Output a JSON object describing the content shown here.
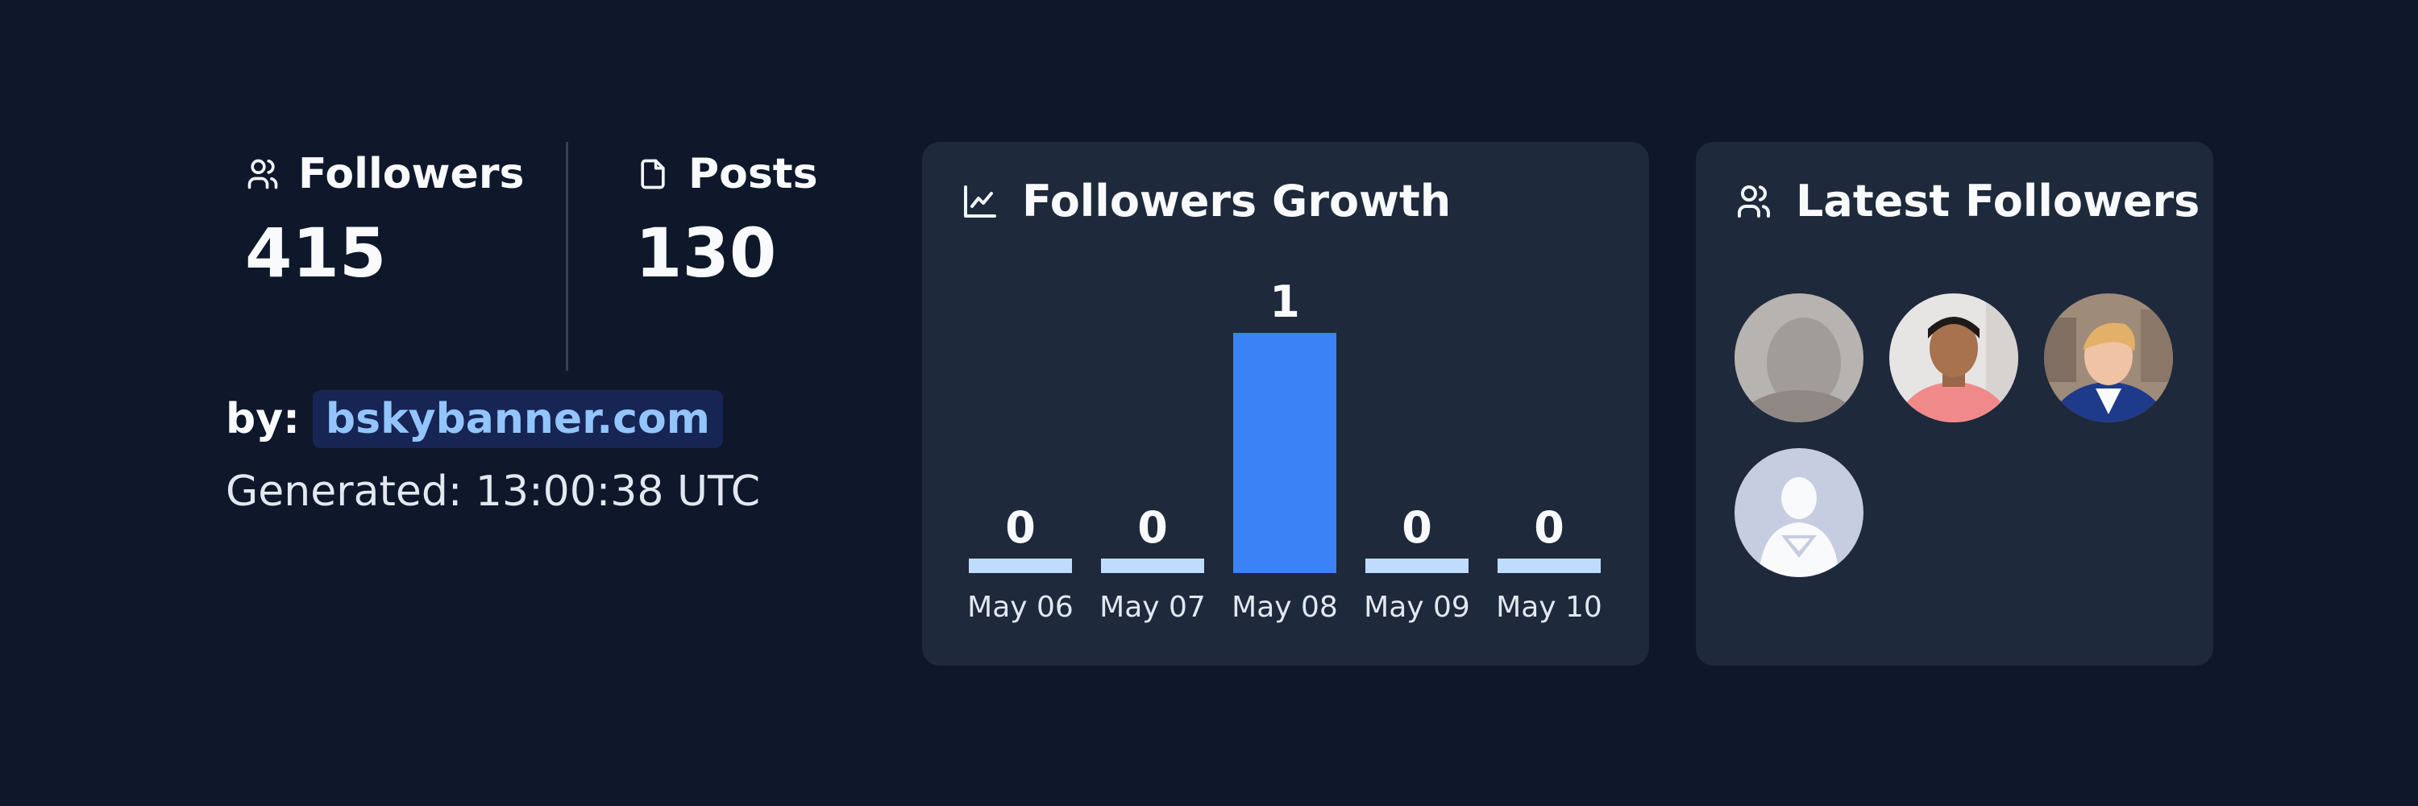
{
  "stats": {
    "followers": {
      "label": "Followers",
      "value": "415",
      "icon": "users-icon"
    },
    "posts": {
      "label": "Posts",
      "value": "130",
      "icon": "file-icon"
    }
  },
  "attribution": {
    "by_label": "by:",
    "link_text": "bskybanner.com"
  },
  "generated": "Generated: 13:00:38 UTC",
  "growth_card": {
    "title": "Followers Growth",
    "icon": "line-chart-icon"
  },
  "latest_card": {
    "title": "Latest Followers",
    "icon": "users-icon",
    "avatars": [
      "avatar-1",
      "avatar-2",
      "avatar-3",
      "avatar-4"
    ]
  },
  "colors": {
    "background": "#0f172a",
    "card": "#1e293b",
    "accent": "#3b82f6",
    "bar_zero": "#bfdbfe",
    "link": "#93c5fd"
  },
  "chart_data": {
    "type": "bar",
    "categories": [
      "May 06",
      "May 07",
      "May 08",
      "May 09",
      "May 10"
    ],
    "values": [
      0,
      0,
      1,
      0,
      0
    ],
    "title": "Followers Growth"
  }
}
